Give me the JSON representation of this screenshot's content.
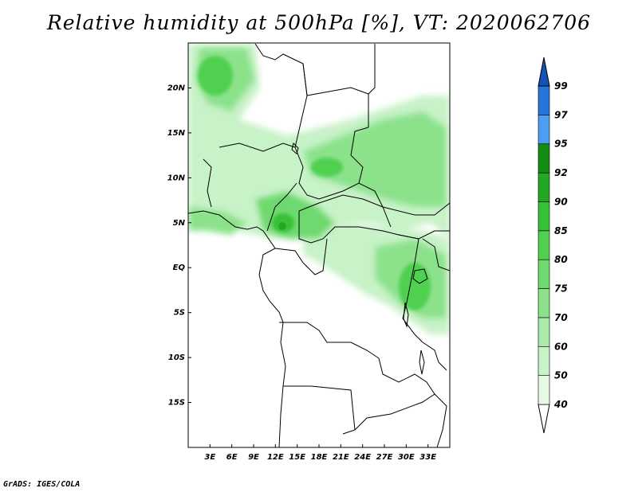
{
  "title": "Relative humidity at 500hPa [%], VT: 2020062706",
  "footer": "GrADS: IGES/COLA",
  "map": {
    "lon_range": [
      0,
      36
    ],
    "lat_range": [
      -20,
      25
    ],
    "lat_ticks": [
      "20N",
      "15N",
      "10N",
      "5N",
      "EQ",
      "5S",
      "10S",
      "15S"
    ],
    "lat_tick_values": [
      20,
      15,
      10,
      5,
      0,
      -5,
      -10,
      -15
    ],
    "lon_ticks": [
      "3E",
      "6E",
      "9E",
      "12E",
      "15E",
      "18E",
      "21E",
      "24E",
      "27E",
      "30E",
      "33E"
    ],
    "lon_tick_values": [
      3,
      6,
      9,
      12,
      15,
      18,
      21,
      24,
      27,
      30,
      33
    ]
  },
  "colorbar": {
    "labels": [
      "40",
      "50",
      "60",
      "70",
      "75",
      "80",
      "85",
      "90",
      "92",
      "95",
      "97",
      "99"
    ],
    "colors": [
      "#ffffff",
      "#e6fae6",
      "#c8f2c8",
      "#aaeaaa",
      "#8be28b",
      "#6ed96e",
      "#50d050",
      "#37c137",
      "#23a823",
      "#128f12",
      "#4a9ff0",
      "#2676d9",
      "#1453b8"
    ]
  }
}
